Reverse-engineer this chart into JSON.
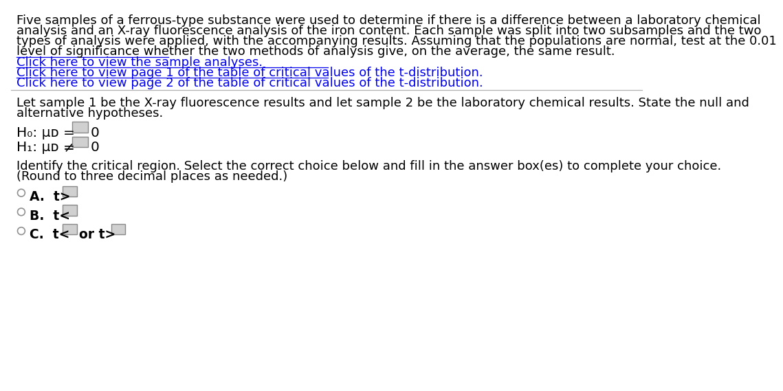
{
  "bg_color": "#ffffff",
  "text_color": "#000000",
  "link_color": "#0000EE",
  "paragraph1_lines": [
    "Five samples of a ferrous-type substance were used to determine if there is a difference between a laboratory chemical",
    "analysis and an X-ray fluorescence analysis of the iron content. Each sample was split into two subsamples and the two",
    "types of analysis were applied, with the accompanying results. Assuming that the populations are normal, test at the 0.01",
    "level of significance whether the two methods of analysis give, on the average, the same result."
  ],
  "link1": "Click here to view the sample analyses.",
  "link2": "Click here to view page 1 of the table of critical values of the t-distribution.",
  "link3": "Click here to view page 2 of the table of critical values of the t-distribution.",
  "paragraph2_lines": [
    "Let sample 1 be the X-ray fluorescence results and let sample 2 be the laboratory chemical results. State the null and",
    "alternative hypotheses."
  ],
  "h0_label": "H₀: μᴅ",
  "h0_symbol": "=",
  "h0_value": "0",
  "h1_label": "H₁: μᴅ",
  "h1_symbol": "≠",
  "h1_value": "0",
  "identify_lines": [
    "Identify the critical region. Select the correct choice below and fill in the answer box(es) to complete your choice.",
    "(Round to three decimal places as needed.)"
  ],
  "choice_A_text": "A.  t>",
  "choice_B_text": "B.  t<",
  "choice_C_text": "C.  t<",
  "choice_C2_text": "or t>",
  "box_color": "#d0d0d0",
  "circle_color": "#ffffff",
  "circle_edge": "#909090",
  "divider_color": "#b0b0b0",
  "font_size_body": 13.0,
  "font_size_hyp": 14.5,
  "font_size_choice": 13.5
}
